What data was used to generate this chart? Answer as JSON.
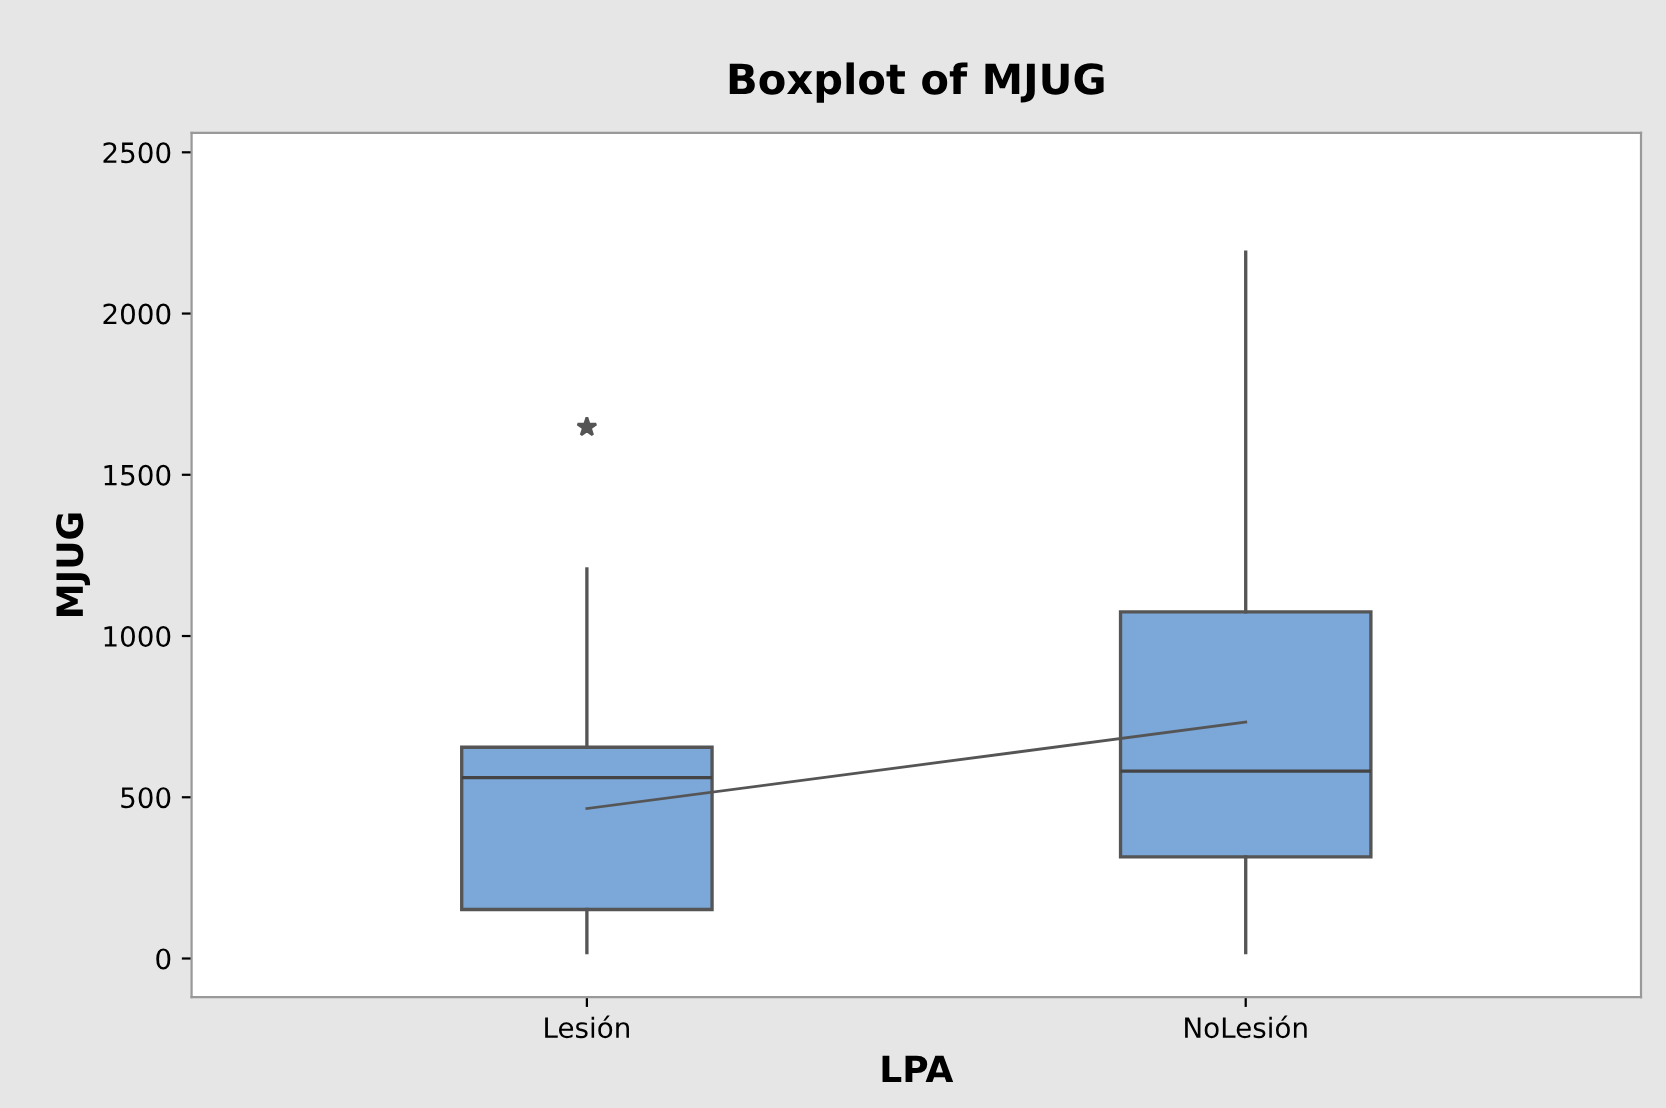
{
  "chart_data": {
    "type": "box",
    "title": "Boxplot of MJUG",
    "xlabel": "LPA",
    "ylabel": "MJUG",
    "categories": [
      "Lesión",
      "NoLesión"
    ],
    "series": [
      {
        "color": "#7ba7d9",
        "boxes": [
          {
            "low": 18,
            "q1": 152,
            "median": 561,
            "q3": 655,
            "high": 1208,
            "outliers": [
              1648
            ]
          },
          {
            "low": 18,
            "q1": 315,
            "median": 581,
            "q3": 1075,
            "high": 2190
          }
        ]
      },
      {
        "type": "line",
        "color": "#555555",
        "values": [
          465,
          733
        ]
      }
    ],
    "ylim": [
      -120,
      2560
    ],
    "yticks": [
      0,
      500,
      1000,
      1500,
      2000,
      2500
    ],
    "grid": false
  }
}
